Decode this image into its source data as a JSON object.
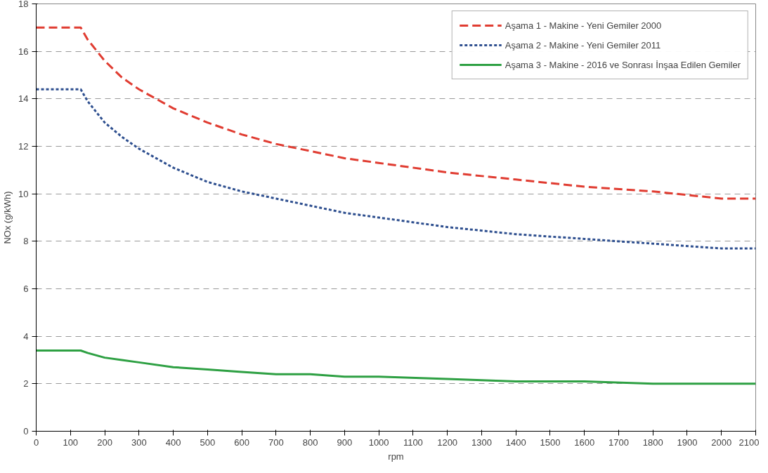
{
  "chart_data": {
    "type": "line",
    "xlabel": "rpm",
    "ylabel": "NOx (g/kWh)",
    "x": [
      0,
      130,
      150,
      200,
      250,
      300,
      400,
      500,
      600,
      700,
      800,
      900,
      1000,
      1200,
      1400,
      1600,
      1800,
      2000,
      2100
    ],
    "series": [
      {
        "name": "Aşama 1 - Makine - Yeni Gemiler 2000",
        "color": "#e03c31",
        "line_style": "dashed",
        "values": [
          17.0,
          17.0,
          16.5,
          15.6,
          14.9,
          14.4,
          13.6,
          13.0,
          12.5,
          12.1,
          11.8,
          11.5,
          11.3,
          10.9,
          10.6,
          10.3,
          10.1,
          9.8,
          9.8
        ]
      },
      {
        "name": "Aşama 2 - Makine - Yeni Gemiler 2011",
        "color": "#2e4f8f",
        "line_style": "dotted",
        "values": [
          14.4,
          14.4,
          13.9,
          13.0,
          12.4,
          11.9,
          11.1,
          10.5,
          10.1,
          9.8,
          9.5,
          9.2,
          9.0,
          8.6,
          8.3,
          8.1,
          7.9,
          7.7,
          7.7
        ]
      },
      {
        "name": "Aşama 3 - Makine - 2016 ve Sonrası İnşaa Edilen Gemiler",
        "color": "#2ea043",
        "line_style": "solid",
        "values": [
          3.4,
          3.4,
          3.3,
          3.1,
          3.0,
          2.9,
          2.7,
          2.6,
          2.5,
          2.4,
          2.4,
          2.3,
          2.3,
          2.2,
          2.1,
          2.1,
          2.0,
          2.0,
          2.0
        ]
      }
    ],
    "xlim": [
      0,
      2100
    ],
    "xticks": [
      0,
      100,
      200,
      300,
      400,
      500,
      600,
      700,
      800,
      900,
      1000,
      1100,
      1200,
      1300,
      1400,
      1500,
      1600,
      1700,
      1800,
      1900,
      2000,
      2100
    ],
    "ylim": [
      0,
      18
    ],
    "yticks": [
      0,
      2,
      4,
      6,
      8,
      10,
      12,
      14,
      16,
      18
    ],
    "grid": "y",
    "legend": "top right",
    "marker": "none"
  }
}
